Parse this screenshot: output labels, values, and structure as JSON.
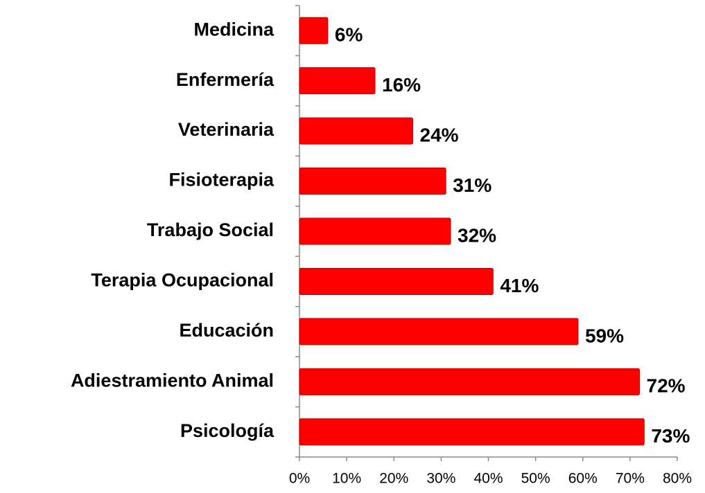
{
  "chart_data": {
    "type": "bar",
    "orientation": "horizontal",
    "categories": [
      "Medicina",
      "Enfermería",
      "Veterinaria",
      "Fisioterapia",
      "Trabajo Social",
      "Terapia Ocupacional",
      "Educación",
      "Adiestramiento Animal",
      "Psicología"
    ],
    "values": [
      6,
      16,
      24,
      31,
      32,
      41,
      59,
      72,
      73
    ],
    "value_labels": [
      "6%",
      "16%",
      "24%",
      "31%",
      "32%",
      "41%",
      "59%",
      "72%",
      "73%"
    ],
    "color": "#ff0000",
    "xlim": [
      0,
      80
    ],
    "xticks": [
      {
        "value": 0,
        "label": "0%"
      },
      {
        "value": 10,
        "label": "10%"
      },
      {
        "value": 20,
        "label": "20%"
      },
      {
        "value": 30,
        "label": "30%"
      },
      {
        "value": 40,
        "label": "40%"
      },
      {
        "value": 50,
        "label": "50%"
      },
      {
        "value": 60,
        "label": "60%"
      },
      {
        "value": 70,
        "label": "70%"
      },
      {
        "value": 80,
        "label": "80%"
      }
    ],
    "grid": false
  }
}
